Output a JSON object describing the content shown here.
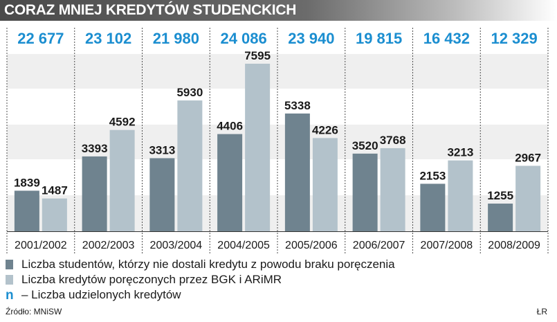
{
  "title": "CORAZ MNIEJ KREDYTÓW STUDENCKICH",
  "chart_data": {
    "type": "bar",
    "categories": [
      "2001/2002",
      "2002/2003",
      "2003/2004",
      "2004/2005",
      "2005/2006",
      "2006/2007",
      "2007/2008",
      "2008/2009"
    ],
    "totals": [
      "22 677",
      "23 102",
      "21 980",
      "24 086",
      "23 940",
      "19 815",
      "16 432",
      "12 329"
    ],
    "series": [
      {
        "name": "Liczba studentów, którzy nie dostali kredytu z powodu braku poręczenia",
        "values": [
          1839,
          3393,
          3313,
          4406,
          5338,
          3520,
          2153,
          1255
        ],
        "color": "#6f838f"
      },
      {
        "name": "Liczba kredytów poręczonych przez BGK i ARiMR",
        "values": [
          1487,
          4592,
          5930,
          7595,
          4226,
          3768,
          3213,
          2967
        ],
        "color": "#b3c2cb"
      }
    ],
    "ylim": [
      0,
      8000
    ],
    "grid": true,
    "totals_color": "#1b8ed0",
    "legend_position": "bottom-left"
  },
  "legend": {
    "items": [
      "Liczba studentów, którzy nie dostali kredytu z powodu braku poręczenia",
      "Liczba kredytów poręczonych przez BGK i ARiMR",
      "– Liczba udzielonych kredytów"
    ],
    "total_marker": "n"
  },
  "source": "Źródło: MNiSW",
  "author": "ŁR"
}
